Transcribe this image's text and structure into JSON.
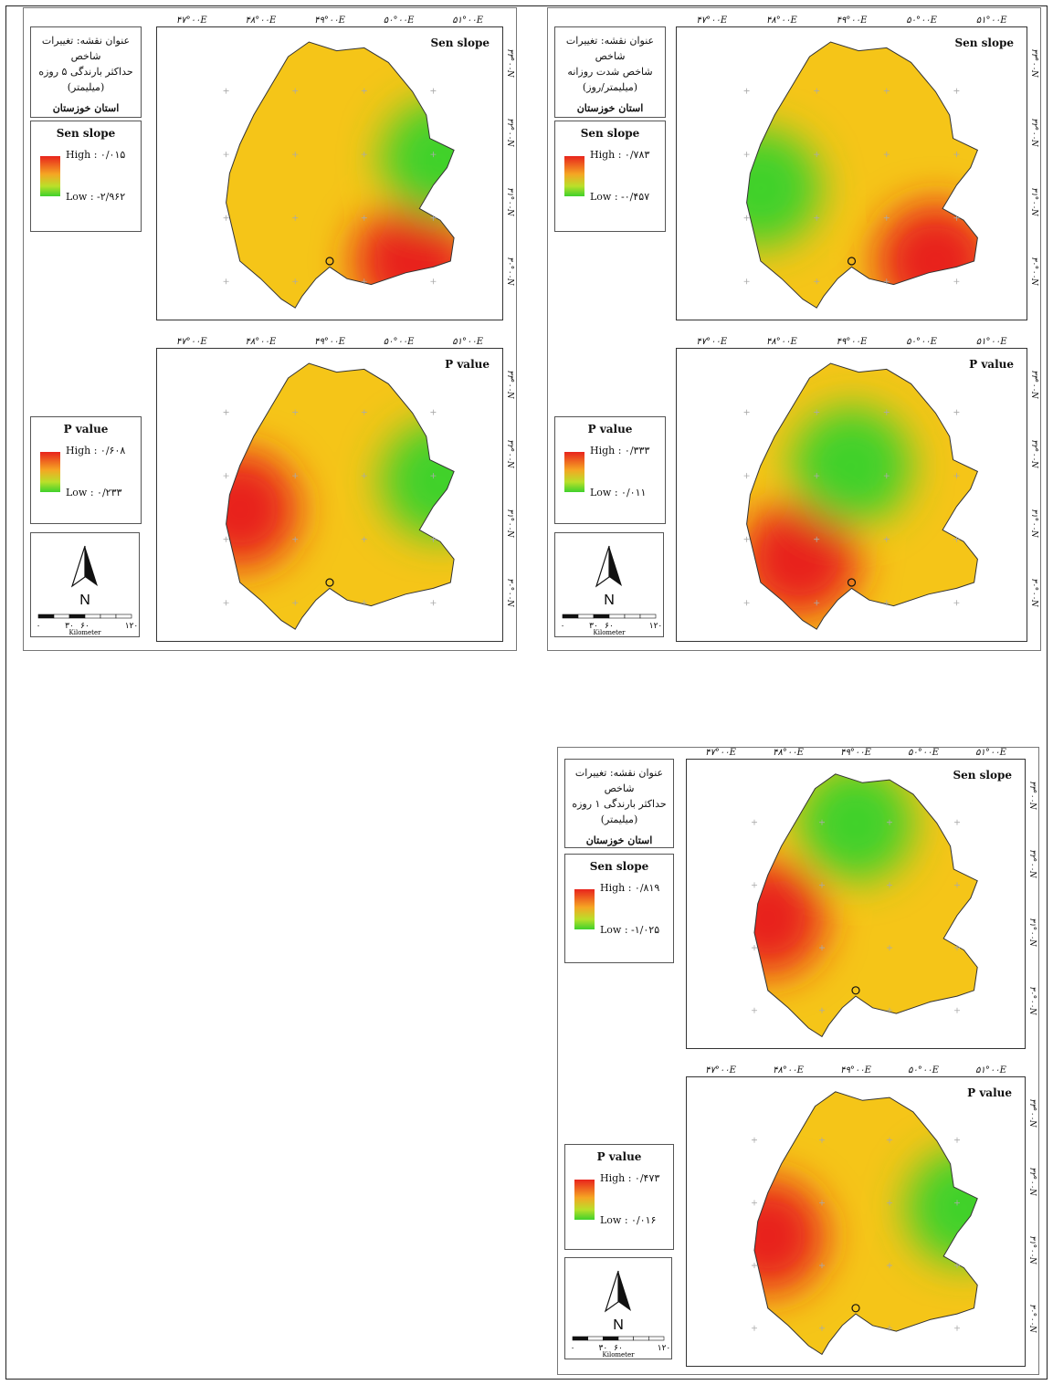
{
  "lon_labels": [
    "۴۷°۰۰E",
    "۴۸°۰۰E",
    "۴۹°۰۰E",
    "۵۰°۰۰E",
    "۵۱°۰۰E"
  ],
  "lat_labels_upper": [
    "۳۳°۰۰N",
    "۳۲°۰۰N",
    "۳۱°۰۰N",
    "۳۰°۰۰N"
  ],
  "lat_labels_lower": [
    "۳۳°۰۰N",
    "۳۲°۰۰N",
    "۳۱°۰۰N",
    "۳۰°۰۰N"
  ],
  "colors": {
    "high": "#e8241c",
    "mid": "#f5c518",
    "low": "#3fd12c",
    "frame": "#333333"
  },
  "scalebar": {
    "ticks": [
      "۰",
      "۳۰",
      "۶۰",
      "۱۲۰"
    ],
    "unit": "Kilometer"
  },
  "north_label": "N",
  "panels": [
    {
      "title_lines": [
        "عنوان نقشه: تغییرات شاخص",
        "حداکثر بارندگی ۵ روزه",
        "(میلیمتر)"
      ],
      "region": "استان خوزستان",
      "sen": {
        "label": "Sen slope",
        "legend_title": "Sen slope",
        "high": "High : ۰/۰۱۵",
        "low": "Low : -۲/۹۶۲",
        "high_area": "southeast",
        "low_area": "east"
      },
      "pval": {
        "label": "P value",
        "legend_title": "P value",
        "high": "High : ۰/۶۰۸",
        "low": "Low : ۰/۲۳۳",
        "high_area": "west",
        "low_area": "east"
      }
    },
    {
      "title_lines": [
        "عنوان نقشه: تغییرات شاخص",
        "شاخص شدت روزانه",
        "(میلیمتر/روز)"
      ],
      "region": "استان خوزستان",
      "sen": {
        "label": "Sen slope",
        "legend_title": "Sen slope",
        "high": "High : ۰/۷۸۳",
        "low": "Low : -۰/۴۵۷",
        "high_area": "southeast",
        "low_area": "west"
      },
      "pval": {
        "label": "P value",
        "legend_title": "P value",
        "high": "High : ۰/۳۳۳",
        "low": "Low : ۰/۰۱۱",
        "high_area": "west-south",
        "low_area": "center-north"
      }
    },
    {
      "title_lines": [
        "عنوان نقشه: تغییرات شاخص",
        "حداکثر بارندگی ۱ روزه",
        "(میلیمتر)"
      ],
      "region": "استان خوزستان",
      "sen": {
        "label": "Sen slope",
        "legend_title": "Sen slope",
        "high": "High : ۰/۸۱۹",
        "low": "Low : -۱/۰۲۵",
        "high_area": "west",
        "low_area": "north"
      },
      "pval": {
        "label": "P value",
        "legend_title": "P value",
        "high": "High : ۰/۴۷۳",
        "low": "Low : ۰/۰۱۶",
        "high_area": "west",
        "low_area": "east"
      }
    }
  ]
}
